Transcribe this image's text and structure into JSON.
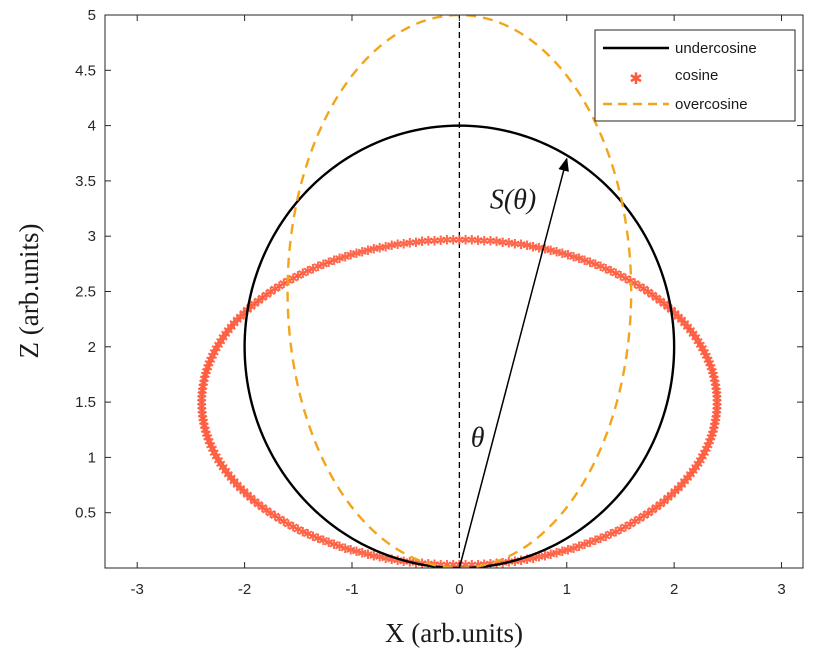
{
  "chart_data": {
    "type": "line",
    "title": "",
    "xlabel": "X (arb.units)",
    "ylabel": "Z (arb.units)",
    "xlim": [
      -3.3,
      3.2
    ],
    "ylim": [
      0,
      5
    ],
    "xticks": [
      -3,
      -2,
      -1,
      0,
      1,
      2,
      3
    ],
    "yticks": [
      0.5,
      1,
      1.5,
      2,
      2.5,
      3,
      3.5,
      4,
      4.5,
      5
    ],
    "grid": false,
    "legend_position": "top-right",
    "series": [
      {
        "name": "undercosine",
        "style": "solid-line",
        "color": "#000000",
        "shape": "ellipse",
        "center": [
          0,
          2
        ],
        "semi_axes": [
          2,
          2
        ]
      },
      {
        "name": "cosine",
        "style": "asterisk-markers",
        "color": "#ff5a3c",
        "shape": "ellipse",
        "center": [
          0,
          1.5
        ],
        "semi_axes": [
          2.4,
          1.47
        ]
      },
      {
        "name": "overcosine",
        "style": "dashed-line",
        "color": "#f2a51c",
        "shape": "ellipse",
        "center": [
          0,
          2.5
        ],
        "semi_axes": [
          1.6,
          2.5
        ]
      }
    ],
    "annotations": [
      {
        "text": "S(θ)",
        "at": [
          0.5,
          3.25
        ]
      },
      {
        "text": "θ",
        "at": [
          0.17,
          1.1
        ]
      }
    ],
    "arrow": {
      "from": [
        0,
        0
      ],
      "to": [
        1.0,
        3.7
      ]
    },
    "vertical_dashed_line": {
      "x": 0,
      "y_range": [
        0,
        5
      ],
      "color": "#000000"
    }
  }
}
